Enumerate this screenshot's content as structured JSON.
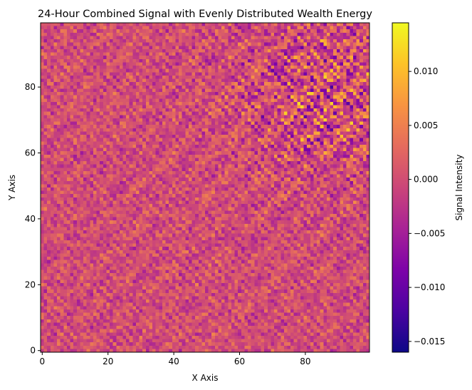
{
  "chart_data": {
    "type": "heatmap",
    "title": "24-Hour Combined Signal with Evenly Distributed Wealth Energy",
    "xlabel": "X Axis",
    "ylabel": "Y Axis",
    "xlim": [
      0,
      99
    ],
    "ylim": [
      0,
      99
    ],
    "grid_size": [
      100,
      100
    ],
    "x_ticks": [
      0,
      20,
      40,
      60,
      80
    ],
    "y_ticks": [
      0,
      20,
      40,
      60,
      80
    ],
    "grid": false,
    "colormap": "plasma",
    "colorbar": {
      "label": "Signal Intensity",
      "range": [
        -0.016,
        0.0145
      ],
      "ticks": [
        0.01,
        0.005,
        0.0,
        -0.005,
        -0.01,
        -0.015
      ],
      "tick_labels": [
        "0.010",
        "0.005",
        "0.000",
        "−0.005",
        "−0.010",
        "−0.015"
      ]
    },
    "pattern": {
      "description_values": "fine diagonal striped noise centred near 0.000, stronger amplitude toward upper-right",
      "typical_abs_value": 0.004,
      "peak_value": 0.0145,
      "trough_value": -0.016
    }
  }
}
